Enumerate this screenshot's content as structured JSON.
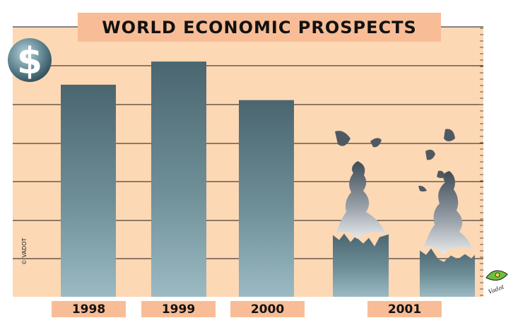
{
  "chart_data": {
    "type": "bar",
    "title": "WORLD ECONOMIC PROSPECTS",
    "categories": [
      "1998",
      "1999",
      "2000",
      "2001"
    ],
    "values": [
      5.5,
      6.1,
      5.1,
      1.6
    ],
    "ylim": [
      0,
      7
    ],
    "grid": true,
    "note": "2001 bars drawn crumbling into smoke",
    "colors": {
      "background": "#fdd8b4",
      "bar_top": "#4a6670",
      "bar_bottom": "#93b4bd",
      "label_bg": "#f8bd96",
      "grid": "#1a1a1a"
    }
  },
  "badge_symbol": "$",
  "credit": "© VADOT",
  "signature": "Vadot"
}
